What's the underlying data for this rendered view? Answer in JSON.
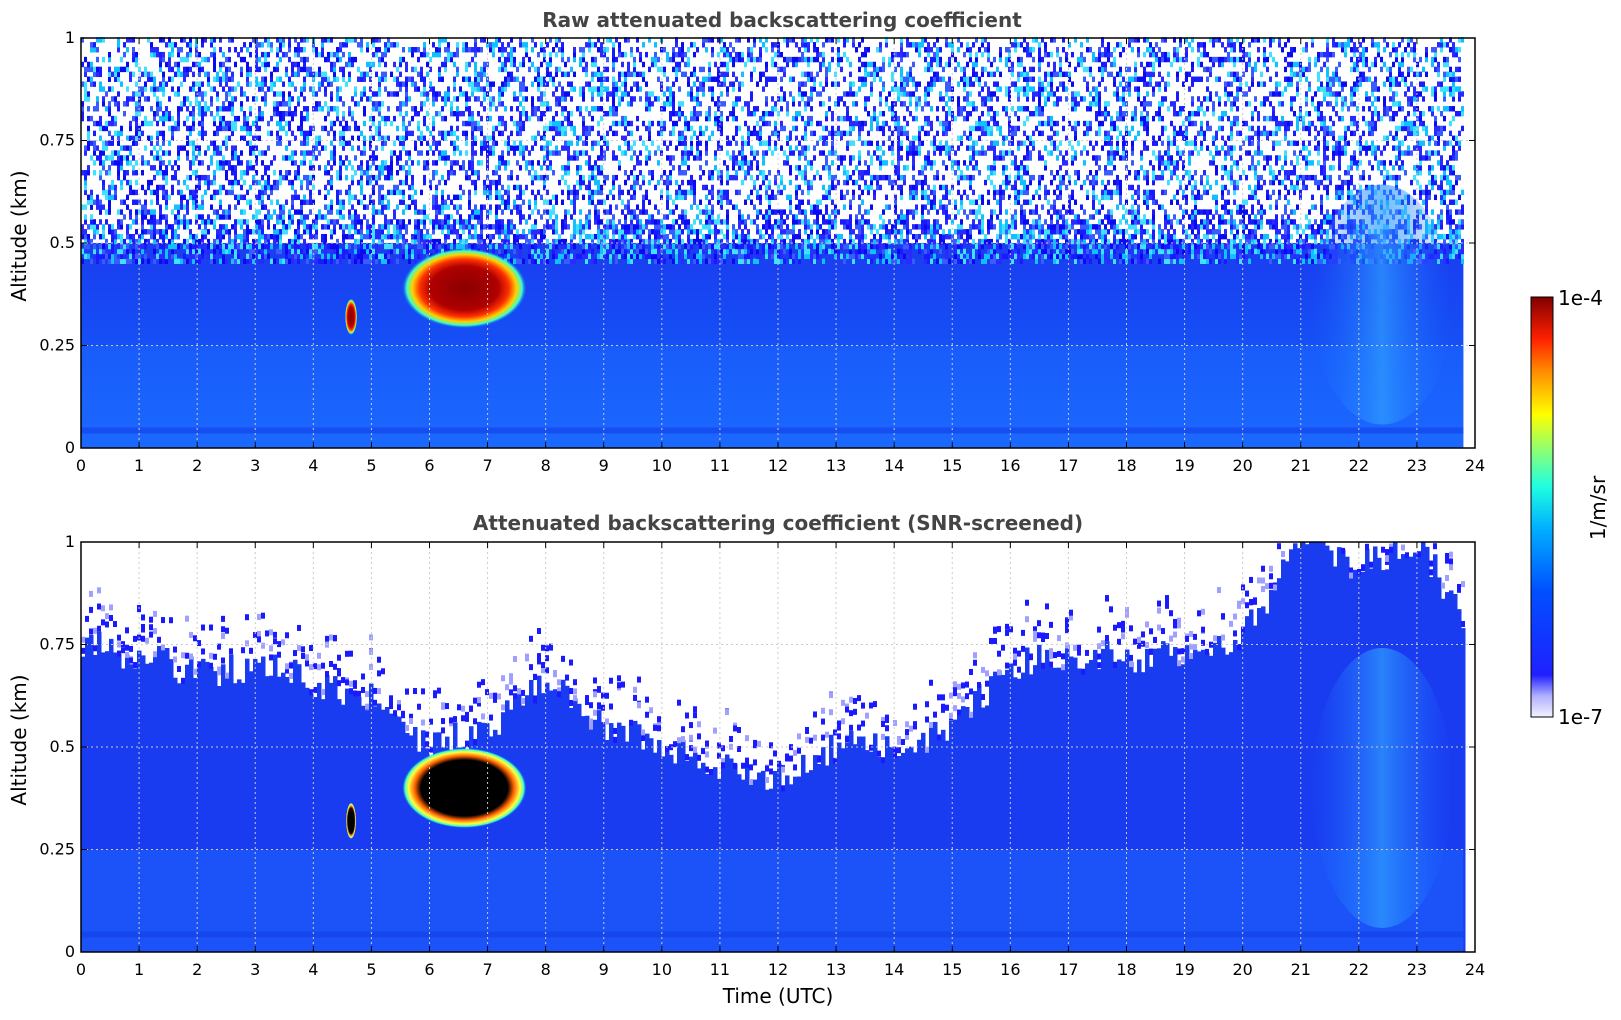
{
  "chart_data": [
    {
      "type": "heatmap",
      "title": "Raw attenuated backscattering coefficient",
      "xlabel": "",
      "ylabel": "Altitude (km)",
      "xlim": [
        0,
        24
      ],
      "ylim": [
        0,
        1
      ],
      "x_ticks": [
        "0",
        "1",
        "2",
        "3",
        "4",
        "5",
        "6",
        "7",
        "8",
        "9",
        "10",
        "11",
        "12",
        "13",
        "14",
        "15",
        "16",
        "17",
        "18",
        "19",
        "20",
        "21",
        "22",
        "23",
        "24"
      ],
      "y_ticks": [
        "0",
        "0.25",
        "0.5",
        "0.75",
        "1"
      ],
      "grid": true,
      "colorscale": "log",
      "data_end_hour": 23.8,
      "features": [
        {
          "name_internal": "cloud",
          "t_start": 5.6,
          "t_end": 7.6,
          "alt_bottom": 0.3,
          "alt_top": 0.48,
          "level": "high (~1e-4)"
        },
        {
          "name_internal": "aerosol-layer",
          "alt_top": 0.5,
          "level": "~1e-6"
        },
        {
          "name_internal": "noise-region",
          "alt_bottom": 0.5,
          "alt_top": 1.0,
          "level": "sparse noise"
        }
      ]
    },
    {
      "type": "heatmap",
      "title": "Attenuated backscattering coefficient (SNR-screened)",
      "xlabel": "Time (UTC)",
      "ylabel": "Altitude (km)",
      "xlim": [
        0,
        24
      ],
      "ylim": [
        0,
        1
      ],
      "x_ticks": [
        "0",
        "1",
        "2",
        "3",
        "4",
        "5",
        "6",
        "7",
        "8",
        "9",
        "10",
        "11",
        "12",
        "13",
        "14",
        "15",
        "16",
        "17",
        "18",
        "19",
        "20",
        "21",
        "22",
        "23",
        "24"
      ],
      "y_ticks": [
        "0",
        "0.25",
        "0.5",
        "0.75",
        "1"
      ],
      "grid": true,
      "colorscale": "log",
      "data_end_hour": 23.8,
      "screened_top_km": [
        [
          0,
          0.75
        ],
        [
          1,
          0.72
        ],
        [
          2,
          0.68
        ],
        [
          3,
          0.7
        ],
        [
          4,
          0.66
        ],
        [
          5,
          0.62
        ],
        [
          6,
          0.5
        ],
        [
          7,
          0.55
        ],
        [
          8,
          0.66
        ],
        [
          9,
          0.55
        ],
        [
          10,
          0.5
        ],
        [
          11,
          0.45
        ],
        [
          12,
          0.42
        ],
        [
          13,
          0.5
        ],
        [
          14,
          0.5
        ],
        [
          15,
          0.55
        ],
        [
          16,
          0.7
        ],
        [
          17,
          0.72
        ],
        [
          18,
          0.72
        ],
        [
          19,
          0.72
        ],
        [
          20,
          0.78
        ],
        [
          21,
          1.0
        ],
        [
          22,
          0.95
        ],
        [
          23,
          1.0
        ],
        [
          23.8,
          0.8
        ]
      ]
    }
  ],
  "colorbar": {
    "label": "1/m/sr",
    "min_label": "1e-7",
    "max_label": "1e-4",
    "scale": "log",
    "colormap": "jet"
  }
}
